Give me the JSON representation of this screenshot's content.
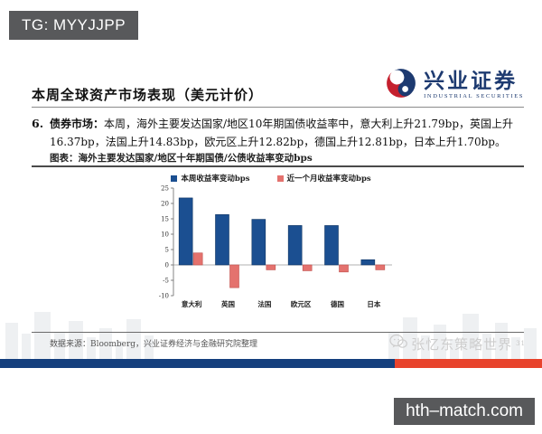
{
  "badge": {
    "text": "TG: MYYJJPP"
  },
  "logo": {
    "brand": "兴业证券",
    "subtitle": "INDUSTRIAL SECURITIES"
  },
  "slide": {
    "title": "本周全球资产市场表现（美元计价）",
    "item_number": "6.",
    "item_lead": "债券市场：",
    "item_text": "本周，海外主要发达国家/地区10年期国债收益率中，意大利上升21.79bp，英国上升16.37bp，法国上升14.83bp，欧元区上升12.82bp，德国上升12.81bp，日本上升1.70bp。",
    "figure_caption": "图表：海外主要发达国家/地区十年期国债/公债收益率变动bps",
    "source": "数据来源：Bloomberg，兴业证券经济与金融研究院整理"
  },
  "chart_data": {
    "type": "bar",
    "title": "海外主要发达国家/地区十年期国债/公债收益率变动bps",
    "categories": [
      "意大利",
      "英国",
      "法国",
      "欧元区",
      "德国",
      "日本"
    ],
    "series": [
      {
        "name": "本周收益率变动bps",
        "color": "#1b4f91",
        "values": [
          21.79,
          16.37,
          14.83,
          12.82,
          12.81,
          1.7
        ]
      },
      {
        "name": "近一个月收益率变动bps",
        "color": "#e4726e",
        "values": [
          3.9,
          -7.4,
          -1.6,
          -1.9,
          -2.3,
          -1.6
        ]
      }
    ],
    "xlabel": "",
    "ylabel": "",
    "ylim": [
      -10,
      25
    ],
    "ytick_step": 5,
    "legend_position": "top",
    "grid": false
  },
  "watermark": {
    "text": "张忆东策略世界",
    "superscript": "31"
  },
  "footer_site": {
    "text": "hth–match.com"
  },
  "colors": {
    "bottom_bar_blue": "#143f7d",
    "bottom_bar_red": "#e8432c",
    "badge_gray": "#58595b",
    "brand_navy": "#1d3a70",
    "logo_red": "#c5202e"
  }
}
